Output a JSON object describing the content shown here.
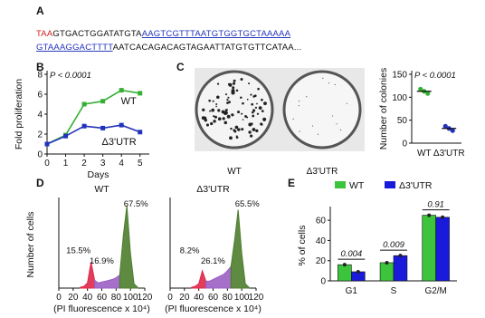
{
  "panel_labels": [
    "A",
    "B",
    "C",
    "D",
    "E"
  ],
  "sequence": [
    "TAA",
    "GTGACTGGATATGTA",
    "AAGTCGTTTAATGTGGTGCTAAAAA",
    "GTAAAGGACTTTT",
    "AATCACAGACAGTAGAATTATGTGTTCATAA..."
  ],
  "plate_labels": [
    "WT",
    "Δ3'UTR"
  ],
  "chart_data": [
    {
      "type": "line",
      "ylabel": "Fold proliferation",
      "xlabel": "Days",
      "annotation": "P < 0.0001",
      "x": [
        0,
        1,
        2,
        3,
        4,
        5
      ],
      "xlim": [
        0,
        5.5
      ],
      "xticks": [
        0,
        1,
        2,
        3,
        4,
        5
      ],
      "ylim": [
        0,
        8
      ],
      "yticks": [
        0,
        2,
        4,
        6,
        8
      ],
      "series": [
        {
          "name": "WT",
          "color": "#35b035",
          "values": [
            1,
            1.9,
            5,
            5.3,
            6.4,
            6.1
          ]
        },
        {
          "name": "Δ3'UTR",
          "color": "#2233bb",
          "values": [
            1,
            1.8,
            2.8,
            2.6,
            2.9,
            2.2
          ]
        }
      ]
    },
    {
      "type": "dot",
      "ylabel": "Number of colonies",
      "annotation": "P < 0.0001",
      "categories": [
        "WT",
        "Δ3'UTR"
      ],
      "values": [
        113,
        32
      ],
      "colors": [
        "#35b035",
        "#2233bb"
      ],
      "ylim": [
        0,
        150
      ],
      "yticks": [
        0,
        50,
        100,
        150
      ]
    },
    {
      "type": "area",
      "title": "WT",
      "ylabel": "Number of cells",
      "xlabel": "(PI fluorescence x 10⁴)",
      "x": [
        30,
        35,
        40,
        45,
        50,
        55,
        60,
        65,
        70,
        75,
        80,
        85,
        90,
        95,
        100,
        105,
        110
      ],
      "xlim": [
        0,
        120
      ],
      "xticks": [
        0,
        20,
        40,
        60,
        80,
        100,
        120
      ],
      "ylim": [
        0,
        100
      ],
      "series": [
        {
          "color": "#e0284a",
          "values": [
            1,
            2,
            6,
            30,
            9,
            null,
            null,
            null,
            null,
            null,
            null,
            null,
            null,
            null,
            null,
            null,
            null
          ]
        },
        {
          "color": "#9c5fc4",
          "values": [
            null,
            null,
            null,
            null,
            9,
            6,
            7,
            8,
            9,
            10,
            12,
            15,
            null,
            null,
            null,
            null,
            null
          ]
        },
        {
          "color": "#4e7d2e",
          "values": [
            null,
            null,
            null,
            null,
            null,
            null,
            null,
            null,
            null,
            null,
            null,
            15,
            60,
            95,
            40,
            5,
            1
          ]
        }
      ],
      "annotations": [
        "15.5%",
        "16.9%",
        "67.5%"
      ]
    },
    {
      "type": "area",
      "title": "Δ3'UTR",
      "xlabel": "(PI fluorescence x 10⁴)",
      "x": [
        30,
        35,
        40,
        45,
        50,
        55,
        60,
        65,
        70,
        75,
        80,
        85,
        90,
        95,
        100,
        105,
        110
      ],
      "xlim": [
        0,
        120
      ],
      "xticks": [
        0,
        20,
        40,
        60,
        80,
        100,
        120
      ],
      "ylim": [
        0,
        100
      ],
      "series": [
        {
          "color": "#e0284a",
          "values": [
            1,
            2,
            5,
            20,
            8,
            null,
            null,
            null,
            null,
            null,
            null,
            null,
            null,
            null,
            null,
            null,
            null
          ]
        },
        {
          "color": "#9c5fc4",
          "values": [
            null,
            null,
            null,
            null,
            8,
            8,
            10,
            12,
            14,
            16,
            20,
            25,
            null,
            null,
            null,
            null,
            null
          ]
        },
        {
          "color": "#4e7d2e",
          "values": [
            null,
            null,
            null,
            null,
            null,
            null,
            null,
            null,
            null,
            null,
            null,
            25,
            55,
            90,
            40,
            5,
            1
          ]
        }
      ],
      "annotations": [
        "8.2%",
        "26.1%",
        "65.5%"
      ]
    },
    {
      "type": "bar",
      "ylabel": "% of cells",
      "categories": [
        "G1",
        "S",
        "G2/M"
      ],
      "series": [
        {
          "name": "WT",
          "color": "#3cc43c",
          "values": [
            16,
            18,
            65
          ]
        },
        {
          "name": "Δ3'UTR",
          "color": "#1a1adb",
          "values": [
            9,
            25,
            63
          ]
        }
      ],
      "ylim": [
        0,
        70
      ],
      "yticks": [
        0,
        20,
        40,
        60
      ],
      "annotations": [
        "0.004",
        "0.009",
        "0.91"
      ]
    }
  ]
}
